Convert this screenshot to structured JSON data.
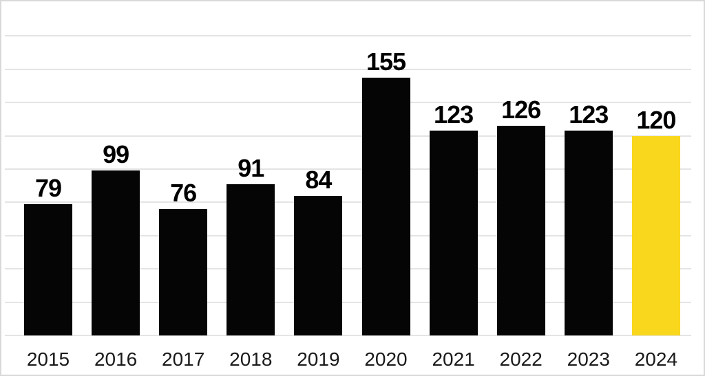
{
  "chart_data": {
    "type": "bar",
    "title": "",
    "xlabel": "",
    "ylabel": "",
    "categories": [
      "2015",
      "2016",
      "2017",
      "2018",
      "2019",
      "2020",
      "2021",
      "2022",
      "2023",
      "2024"
    ],
    "values": [
      79,
      99,
      76,
      91,
      84,
      155,
      123,
      126,
      123,
      120
    ],
    "value_labels": [
      "79",
      "99",
      "76",
      "91",
      "84",
      "155",
      "123",
      "126",
      "123",
      "120"
    ],
    "ylim": [
      0,
      200
    ],
    "grid": true,
    "gridline_step": 20,
    "legend_position": "none",
    "highlight_category": "2024",
    "colors": {
      "bar_default": "#050505",
      "bar_highlight": "#f8d71d",
      "gridline": "#e4e4e4",
      "frame_border": "#d9d9d9",
      "background": "#ffffff",
      "value_label_text": "#000000",
      "axis_label_text": "#1a1a1a"
    }
  }
}
